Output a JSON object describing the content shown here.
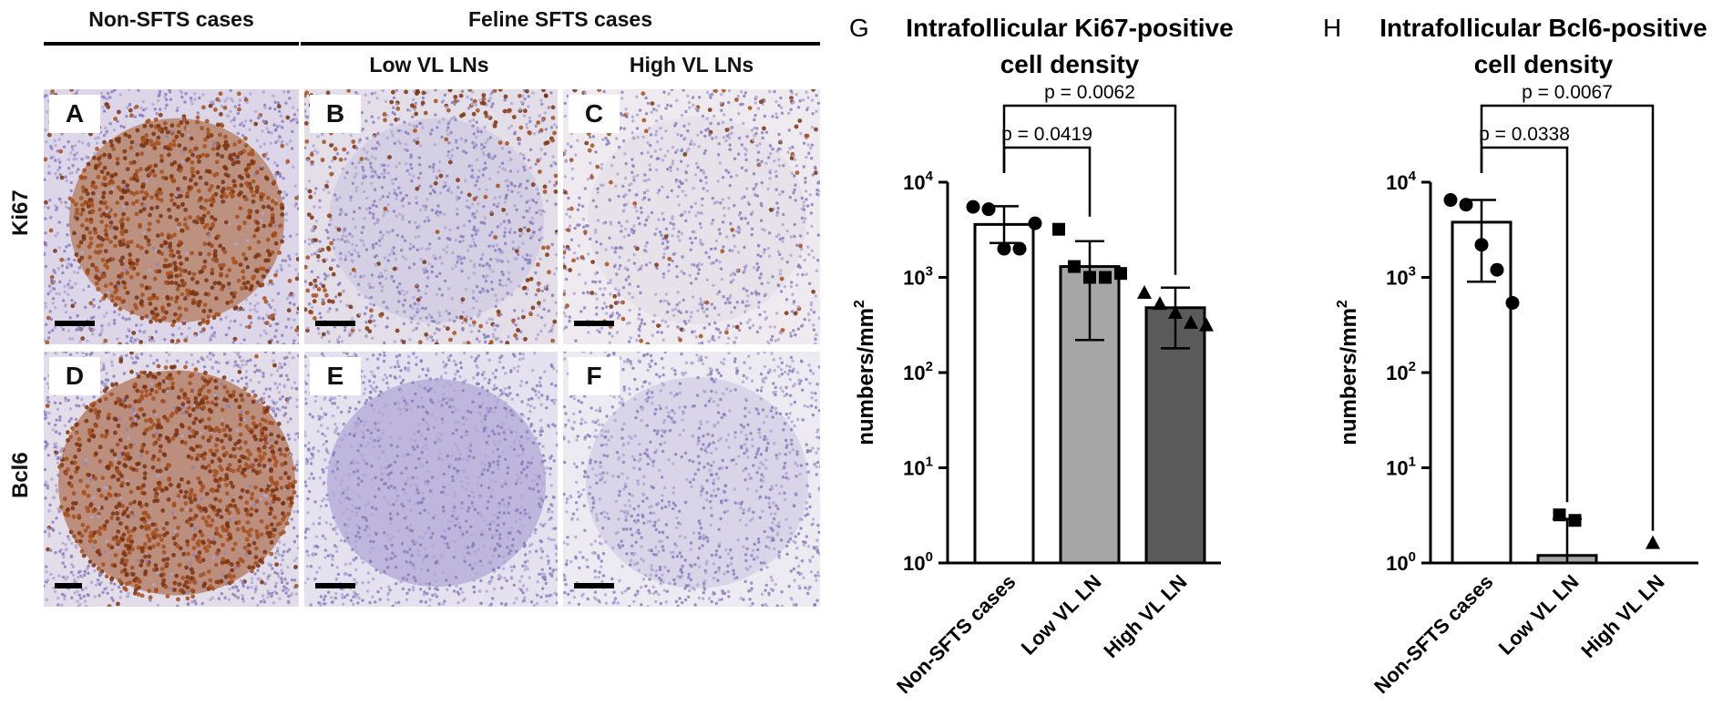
{
  "headers": {
    "non_sfts": "Non-SFTS cases",
    "feline_sfts": "Feline SFTS cases",
    "low_vl": "Low VL LNs",
    "high_vl": "High VL LNs"
  },
  "rows": {
    "ki67": "Ki67",
    "bcl6": "Bcl6"
  },
  "panels": [
    {
      "label": "A",
      "stain": "heavy-brown"
    },
    {
      "label": "B",
      "stain": "sparse-brown"
    },
    {
      "label": "C",
      "stain": "very-sparse-brown"
    },
    {
      "label": "D",
      "stain": "heavy-brown-fine"
    },
    {
      "label": "E",
      "stain": "purple"
    },
    {
      "label": "F",
      "stain": "pale-purple"
    }
  ],
  "colors": {
    "brown": "#8a3a14",
    "purple": "#8e86c2",
    "bar_white": "#ffffff",
    "bar_light": "#a6a6a6",
    "bar_dark": "#5a5a5a"
  },
  "chart_data": [
    {
      "panel_letter": "G",
      "type": "bar",
      "title": "Intrafollicular Ki67-positive cell density",
      "title_lines": [
        "Intrafollicular Ki67-positive",
        "cell density"
      ],
      "ylabel": "numbers/mm",
      "ylabel_sup": "2",
      "yscale": "log",
      "ylim": [
        1,
        10000
      ],
      "yticks": [
        {
          "value": 1,
          "base": "10",
          "exp": "0"
        },
        {
          "value": 10,
          "base": "10",
          "exp": "1"
        },
        {
          "value": 100,
          "base": "10",
          "exp": "2"
        },
        {
          "value": 1000,
          "base": "10",
          "exp": "3"
        },
        {
          "value": 10000,
          "base": "10",
          "exp": "4"
        }
      ],
      "categories": [
        "Non-SFTS cases",
        "Low VL LN",
        "High VL LN"
      ],
      "values": [
        3600,
        1300,
        480
      ],
      "errors_low": [
        2300,
        220,
        180
      ],
      "errors_high": [
        5600,
        2400,
        780
      ],
      "points": [
        [
          5500,
          5200,
          2000,
          2000,
          3700
        ],
        [
          3200,
          1300,
          1000,
          1000,
          1100
        ],
        [
          680,
          520,
          420,
          330,
          310
        ]
      ],
      "markers": [
        "circle",
        "square",
        "triangle"
      ],
      "bar_colors": [
        "#ffffff",
        "#a6a6a6",
        "#5a5a5a"
      ],
      "comparisons": [
        {
          "from": 0,
          "to": 1,
          "label": "p = 0.0419"
        },
        {
          "from": 0,
          "to": 2,
          "label": "p = 0.0062"
        }
      ]
    },
    {
      "panel_letter": "H",
      "type": "bar",
      "title": "Intrafollicular Bcl6-positive cell density",
      "title_lines": [
        "Intrafollicular Bcl6-positive",
        "cell density"
      ],
      "ylabel": "numbers/mm",
      "ylabel_sup": "2",
      "yscale": "log",
      "ylim": [
        1,
        10000
      ],
      "yticks": [
        {
          "value": 1,
          "base": "10",
          "exp": "0"
        },
        {
          "value": 10,
          "base": "10",
          "exp": "1"
        },
        {
          "value": 100,
          "base": "10",
          "exp": "2"
        },
        {
          "value": 1000,
          "base": "10",
          "exp": "3"
        },
        {
          "value": 10000,
          "base": "10",
          "exp": "4"
        }
      ],
      "categories": [
        "Non-SFTS cases",
        "Low VL LN",
        "High VL LN"
      ],
      "values": [
        3800,
        1.2,
        0
      ],
      "errors_low": [
        900,
        1,
        null
      ],
      "errors_high": [
        6500,
        2.9,
        null
      ],
      "points": [
        [
          6500,
          5800,
          2200,
          1200,
          540
        ],
        [
          3.2,
          2.8
        ],
        [
          1.6
        ]
      ],
      "markers": [
        "circle",
        "square",
        "triangle"
      ],
      "bar_colors": [
        "#ffffff",
        "#a6a6a6",
        "#5a5a5a"
      ],
      "comparisons": [
        {
          "from": 0,
          "to": 1,
          "label": "p = 0.0338"
        },
        {
          "from": 0,
          "to": 2,
          "label": "p = 0.0067"
        }
      ]
    }
  ]
}
